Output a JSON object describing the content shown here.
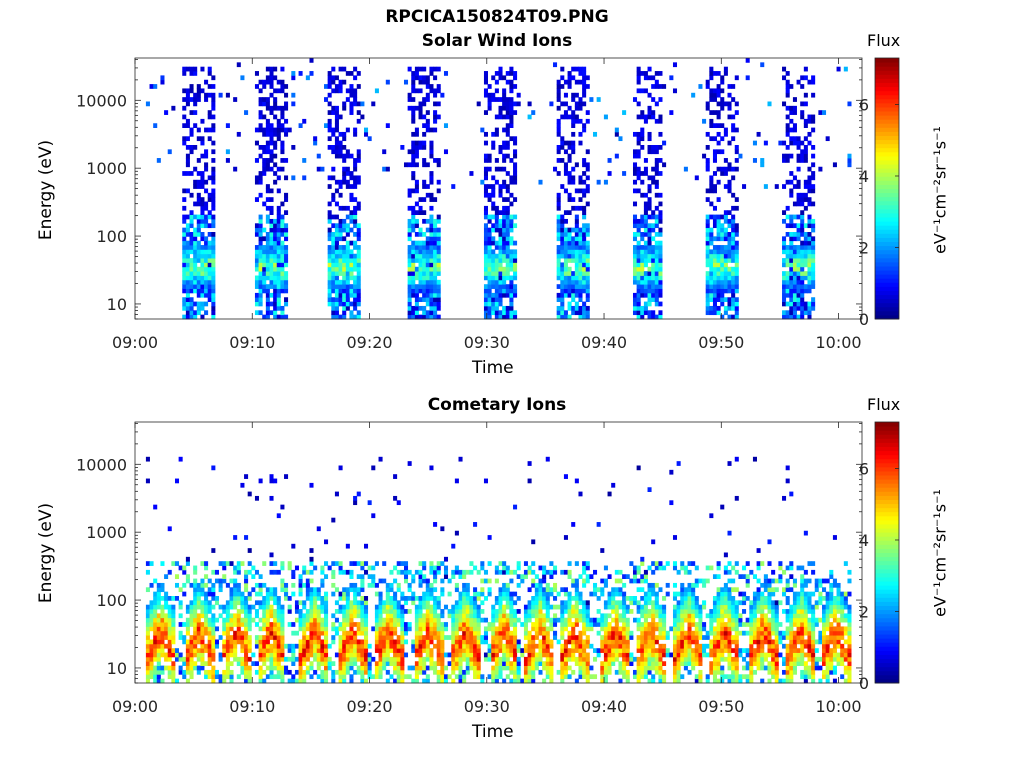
{
  "figure": {
    "filename": "RPCICA150824T09.PNG"
  },
  "chart_data": [
    {
      "type": "heatmap",
      "title": "Solar Wind Ions",
      "xlabel": "Time",
      "ylabel": "Energy (eV)",
      "y_scale": "log",
      "ylim": [
        6,
        42000
      ],
      "y_ticks": [
        10,
        100,
        1000,
        10000
      ],
      "y_tick_labels": [
        "10",
        "100",
        "1000",
        "10000"
      ],
      "x_range_minutes": [
        0,
        62
      ],
      "x_ticks": [
        0,
        10,
        20,
        30,
        40,
        50,
        60
      ],
      "x_tick_labels": [
        "09:00",
        "09:10",
        "09:20",
        "09:30",
        "09:40",
        "09:50",
        "10:00"
      ],
      "sweep_centers_minutes": [
        5.4,
        11.6,
        17.8,
        24.6,
        31.1,
        37.3,
        43.8,
        50.1,
        56.6
      ],
      "peak_energy_ev": 35,
      "peak_flux": 4.6,
      "colorbar": {
        "title": "Flux",
        "label": "eV⁻¹cm⁻²sr⁻¹s⁻¹",
        "range": [
          0,
          7.3
        ],
        "ticks": [
          0,
          2,
          4,
          6
        ],
        "colormap": "jet"
      }
    },
    {
      "type": "heatmap",
      "title": "Cometary Ions",
      "xlabel": "Time",
      "ylabel": "Energy (eV)",
      "y_scale": "log",
      "ylim": [
        6,
        42000
      ],
      "y_ticks": [
        10,
        100,
        1000,
        10000
      ],
      "y_tick_labels": [
        "10",
        "100",
        "1000",
        "10000"
      ],
      "x_range_minutes": [
        0,
        62
      ],
      "x_ticks": [
        0,
        10,
        20,
        30,
        40,
        50,
        60
      ],
      "x_tick_labels": [
        "09:00",
        "09:10",
        "09:20",
        "09:30",
        "09:40",
        "09:50",
        "10:00"
      ],
      "burst_centers_minutes": [
        2.2,
        5.5,
        8.7,
        11.6,
        15.3,
        18.6,
        21.6,
        25.0,
        28.2,
        31.5,
        34.5,
        37.5,
        41.0,
        44.0,
        47.2,
        50.3,
        53.6,
        56.8,
        59.8
      ],
      "peak_energy_ev": 35,
      "peak_flux": 7.0,
      "colorbar": {
        "title": "Flux",
        "label": "eV⁻¹cm⁻²sr⁻¹s⁻¹",
        "range": [
          0,
          7.3
        ],
        "ticks": [
          0,
          2,
          4,
          6
        ],
        "colormap": "jet"
      }
    }
  ]
}
